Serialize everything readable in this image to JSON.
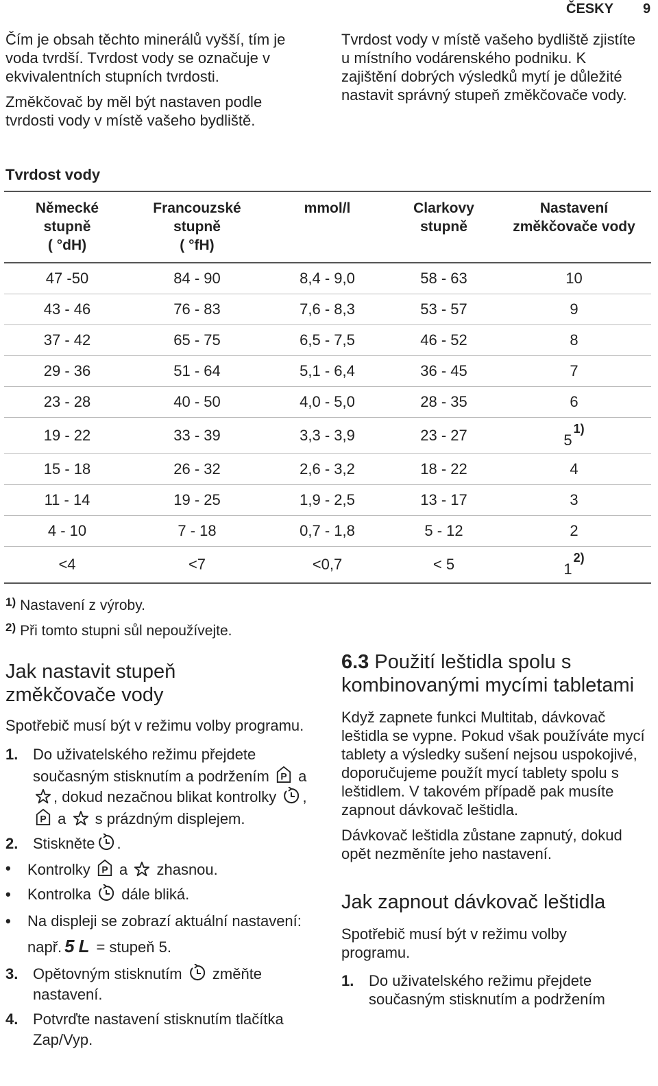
{
  "header": {
    "section": "ČESKY",
    "page": "9"
  },
  "intro": {
    "left": [
      "Čím je obsah těchto minerálů vyšší, tím je voda tvrdší. Tvrdost vody se označuje v ekvivalentních stupních tvrdosti.",
      "Změkčovač by měl být nastaven podle tvrdosti vody v místě vašeho bydliště."
    ],
    "right": [
      "Tvrdost vody v místě vašeho bydliště zjistíte u místního vodárenského podniku. K zajištění dobrých výsledků mytí je důležité nastavit správný stupeň změkčovače vody."
    ]
  },
  "table": {
    "title": "Tvrdost vody",
    "headers": [
      [
        "Německé",
        "stupně",
        "( °dH)"
      ],
      [
        "Francouzské",
        "stupně",
        "( °fH)"
      ],
      [
        "mmol/l"
      ],
      [
        "Clarkovy",
        "stupně"
      ],
      [
        "Nastavení",
        "změkčovače vody"
      ]
    ],
    "rows": [
      {
        "cells": [
          "47 -50",
          "84 - 90",
          "8,4 - 9,0",
          "58 - 63",
          "10"
        ]
      },
      {
        "cells": [
          "43 - 46",
          "76 - 83",
          "7,6 - 8,3",
          "53 - 57",
          "9"
        ]
      },
      {
        "cells": [
          "37 - 42",
          "65 - 75",
          "6,5 - 7,5",
          "46 - 52",
          "8"
        ]
      },
      {
        "cells": [
          "29 - 36",
          "51 - 64",
          "5,1 - 6,4",
          "36 - 45",
          "7"
        ]
      },
      {
        "cells": [
          "23 - 28",
          "40 - 50",
          "4,0 - 5,0",
          "28 - 35",
          "6"
        ]
      },
      {
        "cells": [
          "19 - 22",
          "33 - 39",
          "3,3 - 3,9",
          "23 - 27",
          "5"
        ],
        "note": "1)"
      },
      {
        "cells": [
          "15 - 18",
          "26 - 32",
          "2,6 - 3,2",
          "18 - 22",
          "4"
        ]
      },
      {
        "cells": [
          "11 - 14",
          "19 - 25",
          "1,9 - 2,5",
          "13 - 17",
          "3"
        ]
      },
      {
        "cells": [
          "4 - 10",
          "7 - 18",
          "0,7 - 1,8",
          "5 - 12",
          "2"
        ]
      },
      {
        "cells": [
          "<4",
          "<7",
          "<0,7",
          "< 5",
          "1"
        ],
        "note": "2)"
      }
    ],
    "footnotes": [
      {
        "mark": "1)",
        "text": "Nastavení z výroby."
      },
      {
        "mark": "2)",
        "text": "Při tomto stupni sůl nepoužívejte."
      }
    ]
  },
  "left_section": {
    "heading": "Jak nastavit stupeň změkčovače vody",
    "intro": "Spotřebič musí být v režimu volby programu.",
    "steps": [
      {
        "number": "1.",
        "parts": [
          "Do uživatelského režimu přejdete současným stisknutím a podržením",
          "a",
          ", dokud nezačnou blikat kontrolky",
          ",",
          "a",
          "s prázdným displejem."
        ]
      },
      {
        "number": "2.",
        "parts": [
          "Stiskněte",
          "."
        ]
      },
      {
        "bullet": "•",
        "parts": [
          "Kontrolky",
          "a",
          "zhasnou."
        ]
      },
      {
        "bullet": "•",
        "parts": [
          "Kontrolka",
          "dále bliká."
        ]
      },
      {
        "bullet": "•",
        "parts": [
          "Na displeji se zobrazí aktuální nastavení: např.",
          "5L",
          "= stupeň 5."
        ]
      },
      {
        "number": "3.",
        "parts": [
          "Opětovným stisknutím",
          "změňte nastavení."
        ]
      },
      {
        "number": "4.",
        "parts": [
          "Potvrďte nastavení stisknutím tlačítka Zap/Vyp."
        ]
      }
    ]
  },
  "right_section": {
    "heading_number": "6.3",
    "heading": "Použití leštidla spolu s kombinovanými mycími tabletami",
    "paragraphs": [
      "Když zapnete funkci Multitab, dávkovač leštidla se vypne. Pokud však používáte mycí tablety a výsledky sušení nejsou uspokojivé, doporučujeme použít mycí tablety spolu s leštidlem. V takovém případě pak musíte zapnout dávkovač leštidla.",
      "Dávkovač leštidla zůstane zapnutý, dokud opět nezměníte jeho nastavení."
    ],
    "heading2": "Jak zapnout dávkovač leštidla",
    "intro": "Spotřebič musí být v režimu volby programu.",
    "step": {
      "number": "1.",
      "text": "Do uživatelského režimu přejdete současným stisknutím a podržením"
    }
  }
}
